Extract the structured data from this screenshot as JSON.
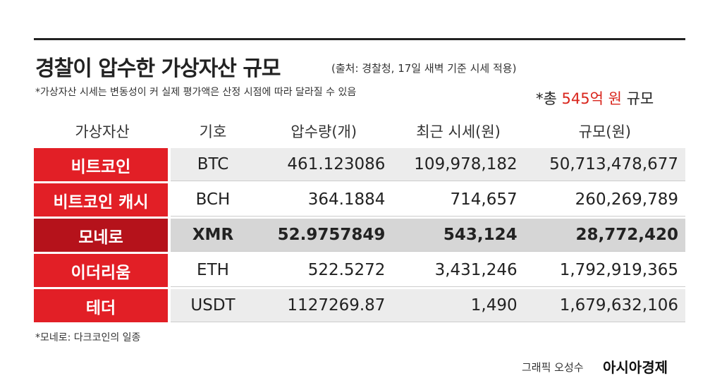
{
  "header": {
    "title": "경찰이 압수한 가상자산 규모",
    "source": "(출처: 경찰청, 17일 새벽 기준 시세 적용)",
    "note": "*가상자산 시세는 변동성이 커 실제 평가액은 산정 시점에 따라 달라질 수 있음",
    "total": {
      "prefix": "*총",
      "amount": "545억 원",
      "suffix": "규모"
    }
  },
  "table": {
    "columns": [
      "가상자산",
      "기호",
      "압수량(개)",
      "최근 시세(원)",
      "규모(원)"
    ],
    "rows": [
      [
        "비트코인",
        "BTC",
        "461.123086",
        "109,978,182",
        "50,713,478,677"
      ],
      [
        "비트코인 캐시",
        "BCH",
        "364.1884",
        "714,657",
        "260,269,789"
      ],
      [
        "모네로",
        "XMR",
        "52.9757849",
        "543,124",
        "28,772,420"
      ],
      [
        "이더리움",
        "ETH",
        "522.5272",
        "3,431,246",
        "1,792,919,365"
      ],
      [
        "테더",
        "USDT",
        "1127269.87",
        "1,490",
        "1,679,632,106"
      ]
    ]
  },
  "footer": {
    "footnote": "*모네로: 다크코인의 일종",
    "credit": "그래픽 오성수",
    "brand": "아시아경제"
  }
}
